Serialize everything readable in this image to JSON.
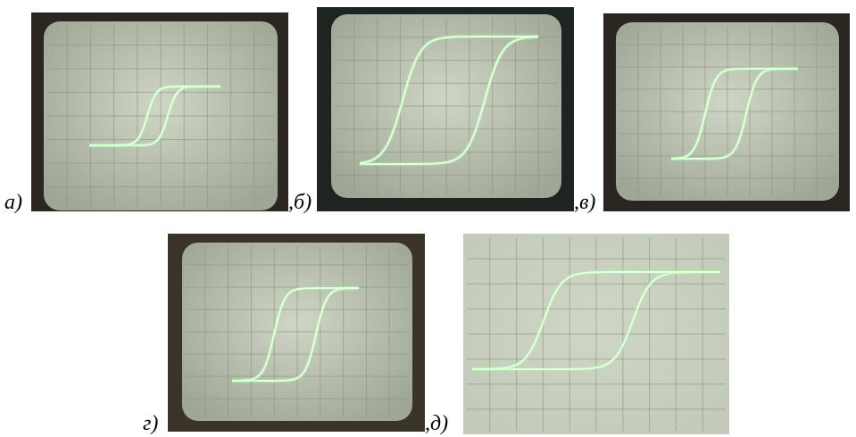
{
  "panels": [
    {
      "label": "а)"
    },
    {
      "label": ",б)"
    },
    {
      "label": ",в)"
    },
    {
      "label": "г)"
    },
    {
      "label": ",д)"
    }
  ]
}
